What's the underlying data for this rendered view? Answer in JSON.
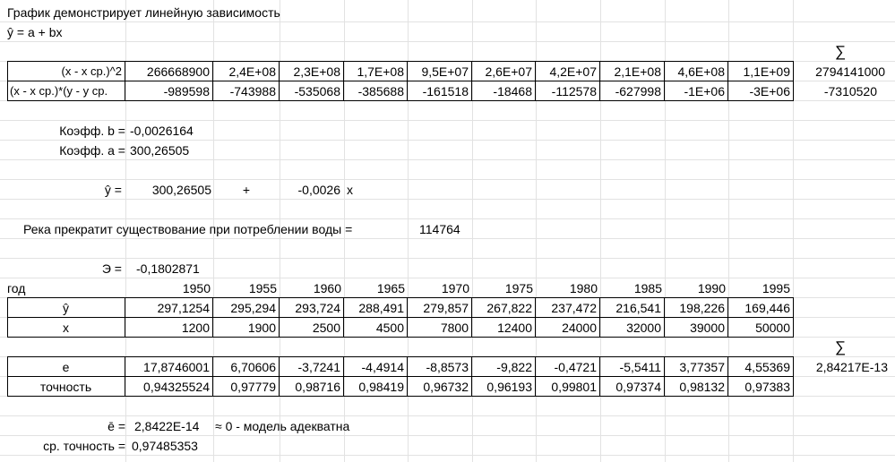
{
  "title": "График демонстрирует линейную зависимость",
  "formula": "ŷ = a + bx",
  "sum_symbol": "∑",
  "table1": {
    "rows": [
      {
        "label": "(x - x ср.)^2",
        "values": [
          "266668900",
          "2,4E+08",
          "2,3E+08",
          "1,7E+08",
          "9,5E+07",
          "2,6E+07",
          "4,2E+07",
          "2,1E+08",
          "4,6E+08",
          "1,1E+09"
        ],
        "sum": "2794141000"
      },
      {
        "label": "(x - x ср.)*(y - y ср.",
        "values": [
          "-989598",
          "-743988",
          "-535068",
          "-385688",
          "-161518",
          "-18468",
          "-112578",
          "-627998",
          "-1E+06",
          "-3E+06"
        ],
        "sum": "-7310520"
      }
    ]
  },
  "coef": {
    "b_label": "Коэфф. b =",
    "b_value": "-0,0026164",
    "a_label": "Коэфф. a =",
    "a_value": "300,26505"
  },
  "equation": {
    "label": "ŷ =",
    "a": "300,26505",
    "plus": "+",
    "b": "-0,0026",
    "x": "x"
  },
  "river": {
    "label": "Река прекратит существование при потреблении воды =",
    "value": "114764"
  },
  "elasticity": {
    "label": "Э =",
    "value": "-0,1802871"
  },
  "table2": {
    "year_label": "год",
    "years": [
      "1950",
      "1955",
      "1960",
      "1965",
      "1970",
      "1975",
      "1980",
      "1985",
      "1990",
      "1995"
    ],
    "rows": [
      {
        "label": "ŷ",
        "values": [
          "297,1254",
          "295,294",
          "293,724",
          "288,491",
          "279,857",
          "267,822",
          "237,472",
          "216,541",
          "198,226",
          "169,446"
        ]
      },
      {
        "label": "x",
        "values": [
          "1200",
          "1900",
          "2500",
          "4500",
          "7800",
          "12400",
          "24000",
          "32000",
          "39000",
          "50000"
        ]
      }
    ]
  },
  "table3": {
    "rows": [
      {
        "label": "e",
        "values": [
          "17,8746001",
          "6,70606",
          "-3,7241",
          "-4,4914",
          "-8,8573",
          "-9,822",
          "-0,4721",
          "-5,5411",
          "3,77357",
          "4,55369"
        ],
        "sum": "2,84217E-13"
      },
      {
        "label": "точность",
        "values": [
          "0,94325524",
          "0,97779",
          "0,98716",
          "0,98419",
          "0,96732",
          "0,96193",
          "0,99801",
          "0,97374",
          "0,98132",
          "0,97383"
        ]
      }
    ]
  },
  "summary": {
    "e_label": "ē =",
    "e_value": "2,8422E-14",
    "e_note": "≈ 0 - модель адекватна",
    "acc_label": "ср. точность =",
    "acc_value": "0,97485353"
  }
}
